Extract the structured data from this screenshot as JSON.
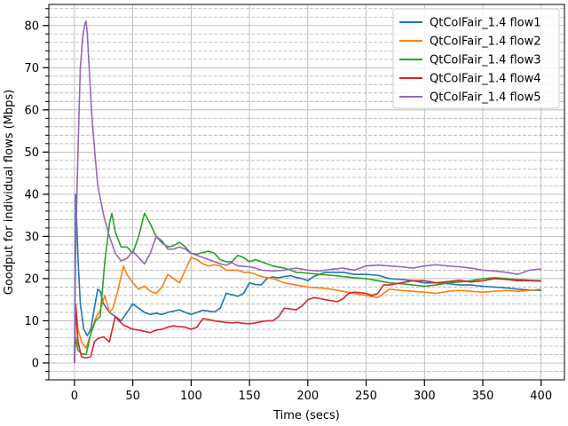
{
  "chart_data": {
    "type": "line",
    "xlabel": "Time (secs)",
    "ylabel": "Goodput for individual flows (Mbps)",
    "xlim": [
      -22,
      420
    ],
    "ylim": [
      -4,
      85
    ],
    "xticks": [
      0,
      50,
      100,
      150,
      200,
      250,
      300,
      350,
      400
    ],
    "yticks": [
      0,
      10,
      20,
      30,
      40,
      50,
      60,
      70,
      80
    ],
    "minor_y_step": 2,
    "grid": true,
    "legend_position": "top-right",
    "series": [
      {
        "name": "QtColFair_1.4 flow1",
        "color": "#1f77b4",
        "points": [
          [
            0,
            0
          ],
          [
            1,
            40
          ],
          [
            3,
            25
          ],
          [
            5,
            14
          ],
          [
            8,
            8
          ],
          [
            11,
            6.5
          ],
          [
            14,
            8
          ],
          [
            17,
            13
          ],
          [
            20,
            17.5
          ],
          [
            22,
            17
          ],
          [
            25,
            14
          ],
          [
            30,
            12
          ],
          [
            35,
            11
          ],
          [
            40,
            10
          ],
          [
            45,
            12
          ],
          [
            50,
            14
          ],
          [
            55,
            13
          ],
          [
            60,
            12
          ],
          [
            65,
            11.5
          ],
          [
            70,
            11.8
          ],
          [
            75,
            11.5
          ],
          [
            80,
            12
          ],
          [
            85,
            12.3
          ],
          [
            90,
            12.6
          ],
          [
            95,
            12
          ],
          [
            100,
            11.5
          ],
          [
            105,
            12
          ],
          [
            110,
            12.5
          ],
          [
            115,
            12.3
          ],
          [
            120,
            12.1
          ],
          [
            125,
            13
          ],
          [
            130,
            16.5
          ],
          [
            135,
            16.2
          ],
          [
            140,
            15.8
          ],
          [
            145,
            16.5
          ],
          [
            150,
            19
          ],
          [
            155,
            18.6
          ],
          [
            160,
            18.5
          ],
          [
            165,
            20
          ],
          [
            170,
            20.4
          ],
          [
            175,
            20.2
          ],
          [
            180,
            20.5
          ],
          [
            185,
            20.7
          ],
          [
            190,
            20.3
          ],
          [
            195,
            20
          ],
          [
            200,
            19.5
          ],
          [
            205,
            20.5
          ],
          [
            210,
            21
          ],
          [
            215,
            21.5
          ],
          [
            220,
            21.5
          ],
          [
            230,
            21.5
          ],
          [
            240,
            21
          ],
          [
            250,
            21
          ],
          [
            260,
            20.8
          ],
          [
            270,
            20
          ],
          [
            280,
            19.8
          ],
          [
            290,
            19.5
          ],
          [
            300,
            19
          ],
          [
            310,
            19
          ],
          [
            320,
            18.8
          ],
          [
            330,
            18.5
          ],
          [
            340,
            18.5
          ],
          [
            350,
            18.2
          ],
          [
            360,
            18
          ],
          [
            370,
            17.8
          ],
          [
            380,
            17.5
          ],
          [
            390,
            17.3
          ],
          [
            400,
            17.2
          ]
        ]
      },
      {
        "name": "QtColFair_1.4 flow2",
        "color": "#ff7f0e",
        "points": [
          [
            0,
            0
          ],
          [
            1,
            14
          ],
          [
            3,
            8
          ],
          [
            6,
            5
          ],
          [
            10,
            3.5
          ],
          [
            14,
            7
          ],
          [
            18,
            10.5
          ],
          [
            22,
            12.5
          ],
          [
            26,
            16
          ],
          [
            30,
            12
          ],
          [
            33,
            13
          ],
          [
            37,
            17
          ],
          [
            40,
            20.5
          ],
          [
            42,
            23
          ],
          [
            45,
            21
          ],
          [
            50,
            19
          ],
          [
            55,
            17.5
          ],
          [
            60,
            18.2
          ],
          [
            65,
            17
          ],
          [
            70,
            16.5
          ],
          [
            75,
            18
          ],
          [
            80,
            21
          ],
          [
            85,
            20
          ],
          [
            90,
            19
          ],
          [
            95,
            22
          ],
          [
            100,
            25
          ],
          [
            105,
            24.5
          ],
          [
            110,
            23.5
          ],
          [
            115,
            23
          ],
          [
            120,
            23.3
          ],
          [
            125,
            23
          ],
          [
            130,
            22
          ],
          [
            135,
            22
          ],
          [
            140,
            22
          ],
          [
            145,
            21.5
          ],
          [
            150,
            21.5
          ],
          [
            155,
            21
          ],
          [
            160,
            20.5
          ],
          [
            170,
            20
          ],
          [
            180,
            19
          ],
          [
            190,
            18.5
          ],
          [
            200,
            18
          ],
          [
            210,
            17.8
          ],
          [
            220,
            17.5
          ],
          [
            230,
            17
          ],
          [
            240,
            16.5
          ],
          [
            250,
            16
          ],
          [
            260,
            15.5
          ],
          [
            265,
            16.5
          ],
          [
            270,
            17.5
          ],
          [
            280,
            17.2
          ],
          [
            290,
            17
          ],
          [
            300,
            16.8
          ],
          [
            310,
            16.5
          ],
          [
            320,
            17
          ],
          [
            330,
            17.2
          ],
          [
            340,
            17
          ],
          [
            350,
            16.8
          ],
          [
            360,
            17
          ],
          [
            370,
            17.2
          ],
          [
            380,
            17
          ],
          [
            390,
            17.2
          ],
          [
            400,
            17.5
          ]
        ]
      },
      {
        "name": "QtColFair_1.4 flow3",
        "color": "#2ca02c",
        "points": [
          [
            0,
            0
          ],
          [
            1,
            6
          ],
          [
            3,
            3
          ],
          [
            6,
            2.2
          ],
          [
            10,
            2
          ],
          [
            14,
            7
          ],
          [
            18,
            10
          ],
          [
            22,
            11
          ],
          [
            26,
            24
          ],
          [
            30,
            33
          ],
          [
            32,
            35.5
          ],
          [
            35,
            31
          ],
          [
            40,
            27.5
          ],
          [
            45,
            27.5
          ],
          [
            50,
            26
          ],
          [
            55,
            30
          ],
          [
            60,
            35.5
          ],
          [
            65,
            33
          ],
          [
            70,
            30
          ],
          [
            75,
            28.5
          ],
          [
            80,
            27.5
          ],
          [
            85,
            27.8
          ],
          [
            90,
            28.6
          ],
          [
            95,
            27.5
          ],
          [
            100,
            26
          ],
          [
            105,
            25.8
          ],
          [
            110,
            26.2
          ],
          [
            115,
            26.5
          ],
          [
            120,
            26
          ],
          [
            125,
            24.5
          ],
          [
            130,
            24
          ],
          [
            135,
            24
          ],
          [
            140,
            25.5
          ],
          [
            145,
            25
          ],
          [
            150,
            24
          ],
          [
            155,
            24.5
          ],
          [
            160,
            24
          ],
          [
            170,
            23
          ],
          [
            180,
            22.5
          ],
          [
            190,
            21.5
          ],
          [
            200,
            21.3
          ],
          [
            210,
            21
          ],
          [
            220,
            20.8
          ],
          [
            230,
            20.5
          ],
          [
            240,
            20.2
          ],
          [
            250,
            20
          ],
          [
            260,
            19.5
          ],
          [
            270,
            19
          ],
          [
            280,
            18.8
          ],
          [
            290,
            18.5
          ],
          [
            300,
            18.2
          ],
          [
            310,
            18.5
          ],
          [
            320,
            19
          ],
          [
            330,
            19.2
          ],
          [
            340,
            19.5
          ],
          [
            350,
            20
          ],
          [
            360,
            20.2
          ],
          [
            370,
            20
          ],
          [
            380,
            19.8
          ],
          [
            390,
            19.6
          ],
          [
            400,
            19.5
          ]
        ]
      },
      {
        "name": "QtColFair_1.4 flow4",
        "color": "#d62728",
        "points": [
          [
            0,
            0
          ],
          [
            1,
            14
          ],
          [
            3,
            5
          ],
          [
            6,
            1.5
          ],
          [
            10,
            1.2
          ],
          [
            14,
            1.5
          ],
          [
            17,
            5
          ],
          [
            20,
            5.8
          ],
          [
            25,
            6.2
          ],
          [
            30,
            5
          ],
          [
            32,
            7.5
          ],
          [
            35,
            11
          ],
          [
            38,
            10
          ],
          [
            42,
            9
          ],
          [
            50,
            8
          ],
          [
            55,
            7.8
          ],
          [
            60,
            7.5
          ],
          [
            65,
            7.2
          ],
          [
            70,
            7.8
          ],
          [
            75,
            8
          ],
          [
            80,
            8.5
          ],
          [
            85,
            8.8
          ],
          [
            90,
            8.6
          ],
          [
            95,
            8.5
          ],
          [
            100,
            8
          ],
          [
            105,
            8.5
          ],
          [
            110,
            10.5
          ],
          [
            115,
            10.3
          ],
          [
            120,
            10
          ],
          [
            125,
            9.8
          ],
          [
            130,
            9.6
          ],
          [
            135,
            9.5
          ],
          [
            140,
            9.6
          ],
          [
            145,
            9.4
          ],
          [
            150,
            9.3
          ],
          [
            155,
            9.5
          ],
          [
            160,
            9.8
          ],
          [
            165,
            10
          ],
          [
            170,
            10
          ],
          [
            175,
            11
          ],
          [
            180,
            13
          ],
          [
            185,
            12.8
          ],
          [
            190,
            12.6
          ],
          [
            195,
            13.5
          ],
          [
            200,
            15
          ],
          [
            205,
            15.5
          ],
          [
            210,
            15.3
          ],
          [
            215,
            15
          ],
          [
            220,
            14.8
          ],
          [
            225,
            14.5
          ],
          [
            230,
            15.2
          ],
          [
            235,
            16.5
          ],
          [
            240,
            16.8
          ],
          [
            250,
            16.5
          ],
          [
            255,
            16
          ],
          [
            260,
            16.5
          ],
          [
            265,
            18.5
          ],
          [
            270,
            18.5
          ],
          [
            280,
            19
          ],
          [
            290,
            19.5
          ],
          [
            300,
            19.5
          ],
          [
            310,
            19
          ],
          [
            320,
            19.3
          ],
          [
            330,
            19.6
          ],
          [
            340,
            19.2
          ],
          [
            350,
            19.5
          ],
          [
            360,
            20
          ],
          [
            370,
            19.8
          ],
          [
            380,
            19.5
          ],
          [
            390,
            19.5
          ],
          [
            400,
            19.4
          ]
        ]
      },
      {
        "name": "QtColFair_1.4 flow5",
        "color": "#9467bd",
        "points": [
          [
            0,
            0
          ],
          [
            1,
            28
          ],
          [
            3,
            50
          ],
          [
            5,
            70
          ],
          [
            7,
            77
          ],
          [
            9,
            80.5
          ],
          [
            10,
            81
          ],
          [
            11,
            78
          ],
          [
            13,
            68
          ],
          [
            15,
            58
          ],
          [
            18,
            48
          ],
          [
            20,
            42
          ],
          [
            25,
            35
          ],
          [
            30,
            30
          ],
          [
            35,
            26
          ],
          [
            40,
            24.2
          ],
          [
            45,
            24.8
          ],
          [
            50,
            26.5
          ],
          [
            55,
            25
          ],
          [
            60,
            23.5
          ],
          [
            65,
            26
          ],
          [
            70,
            30
          ],
          [
            75,
            29
          ],
          [
            80,
            27
          ],
          [
            85,
            27
          ],
          [
            90,
            27.5
          ],
          [
            95,
            27
          ],
          [
            100,
            26
          ],
          [
            105,
            25.5
          ],
          [
            110,
            25
          ],
          [
            115,
            24.5
          ],
          [
            120,
            24
          ],
          [
            125,
            23.5
          ],
          [
            130,
            23.2
          ],
          [
            135,
            23.8
          ],
          [
            140,
            23
          ],
          [
            150,
            22.8
          ],
          [
            155,
            22.5
          ],
          [
            160,
            22
          ],
          [
            170,
            21.8
          ],
          [
            180,
            22
          ],
          [
            190,
            22.5
          ],
          [
            200,
            22
          ],
          [
            210,
            21.8
          ],
          [
            220,
            22.2
          ],
          [
            230,
            22.5
          ],
          [
            240,
            22
          ],
          [
            250,
            23
          ],
          [
            260,
            23.2
          ],
          [
            270,
            23
          ],
          [
            280,
            22.8
          ],
          [
            290,
            22.5
          ],
          [
            300,
            23
          ],
          [
            310,
            23.3
          ],
          [
            320,
            23
          ],
          [
            330,
            22.8
          ],
          [
            340,
            22.5
          ],
          [
            350,
            22
          ],
          [
            360,
            21.8
          ],
          [
            370,
            21.5
          ],
          [
            380,
            21
          ],
          [
            390,
            22
          ],
          [
            400,
            22.3
          ]
        ]
      }
    ]
  }
}
